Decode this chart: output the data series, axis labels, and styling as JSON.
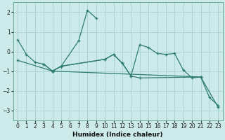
{
  "title": "",
  "xlabel": "Humidex (Indice chaleur)",
  "background_color": "#cceaea",
  "grid_color": "#aad4d4",
  "line_color": "#2e7d6e",
  "xlim": [
    -0.5,
    23.5
  ],
  "ylim": [
    -3.5,
    2.5
  ],
  "yticks": [
    -3,
    -2,
    -1,
    0,
    1,
    2
  ],
  "xticks": [
    0,
    1,
    2,
    3,
    4,
    5,
    6,
    7,
    8,
    9,
    10,
    11,
    12,
    13,
    14,
    15,
    16,
    17,
    18,
    19,
    20,
    21,
    22,
    23
  ],
  "lines": [
    {
      "x": [
        0,
        1,
        2,
        3,
        4,
        5,
        7,
        8,
        9
      ],
      "y": [
        0.6,
        -0.15,
        -0.55,
        -0.65,
        -1.0,
        -0.75,
        0.55,
        2.1,
        1.7
      ]
    },
    {
      "x": [
        3,
        4,
        5,
        10,
        11,
        12,
        13,
        14,
        15,
        16,
        17,
        18,
        19,
        20,
        21
      ],
      "y": [
        -0.65,
        -1.0,
        -0.75,
        -0.4,
        -0.15,
        -0.6,
        -1.25,
        0.35,
        0.2,
        -0.1,
        -0.15,
        -0.1,
        -0.95,
        -1.35,
        -1.3
      ]
    },
    {
      "x": [
        4,
        5,
        10,
        11,
        12,
        13,
        14,
        21,
        22,
        23
      ],
      "y": [
        -1.0,
        -0.75,
        -0.4,
        -0.15,
        -0.6,
        -1.25,
        -1.35,
        -1.3,
        -2.35,
        -2.75
      ]
    },
    {
      "x": [
        0,
        4,
        21,
        23
      ],
      "y": [
        -0.45,
        -1.0,
        -1.3,
        -2.85
      ]
    }
  ]
}
